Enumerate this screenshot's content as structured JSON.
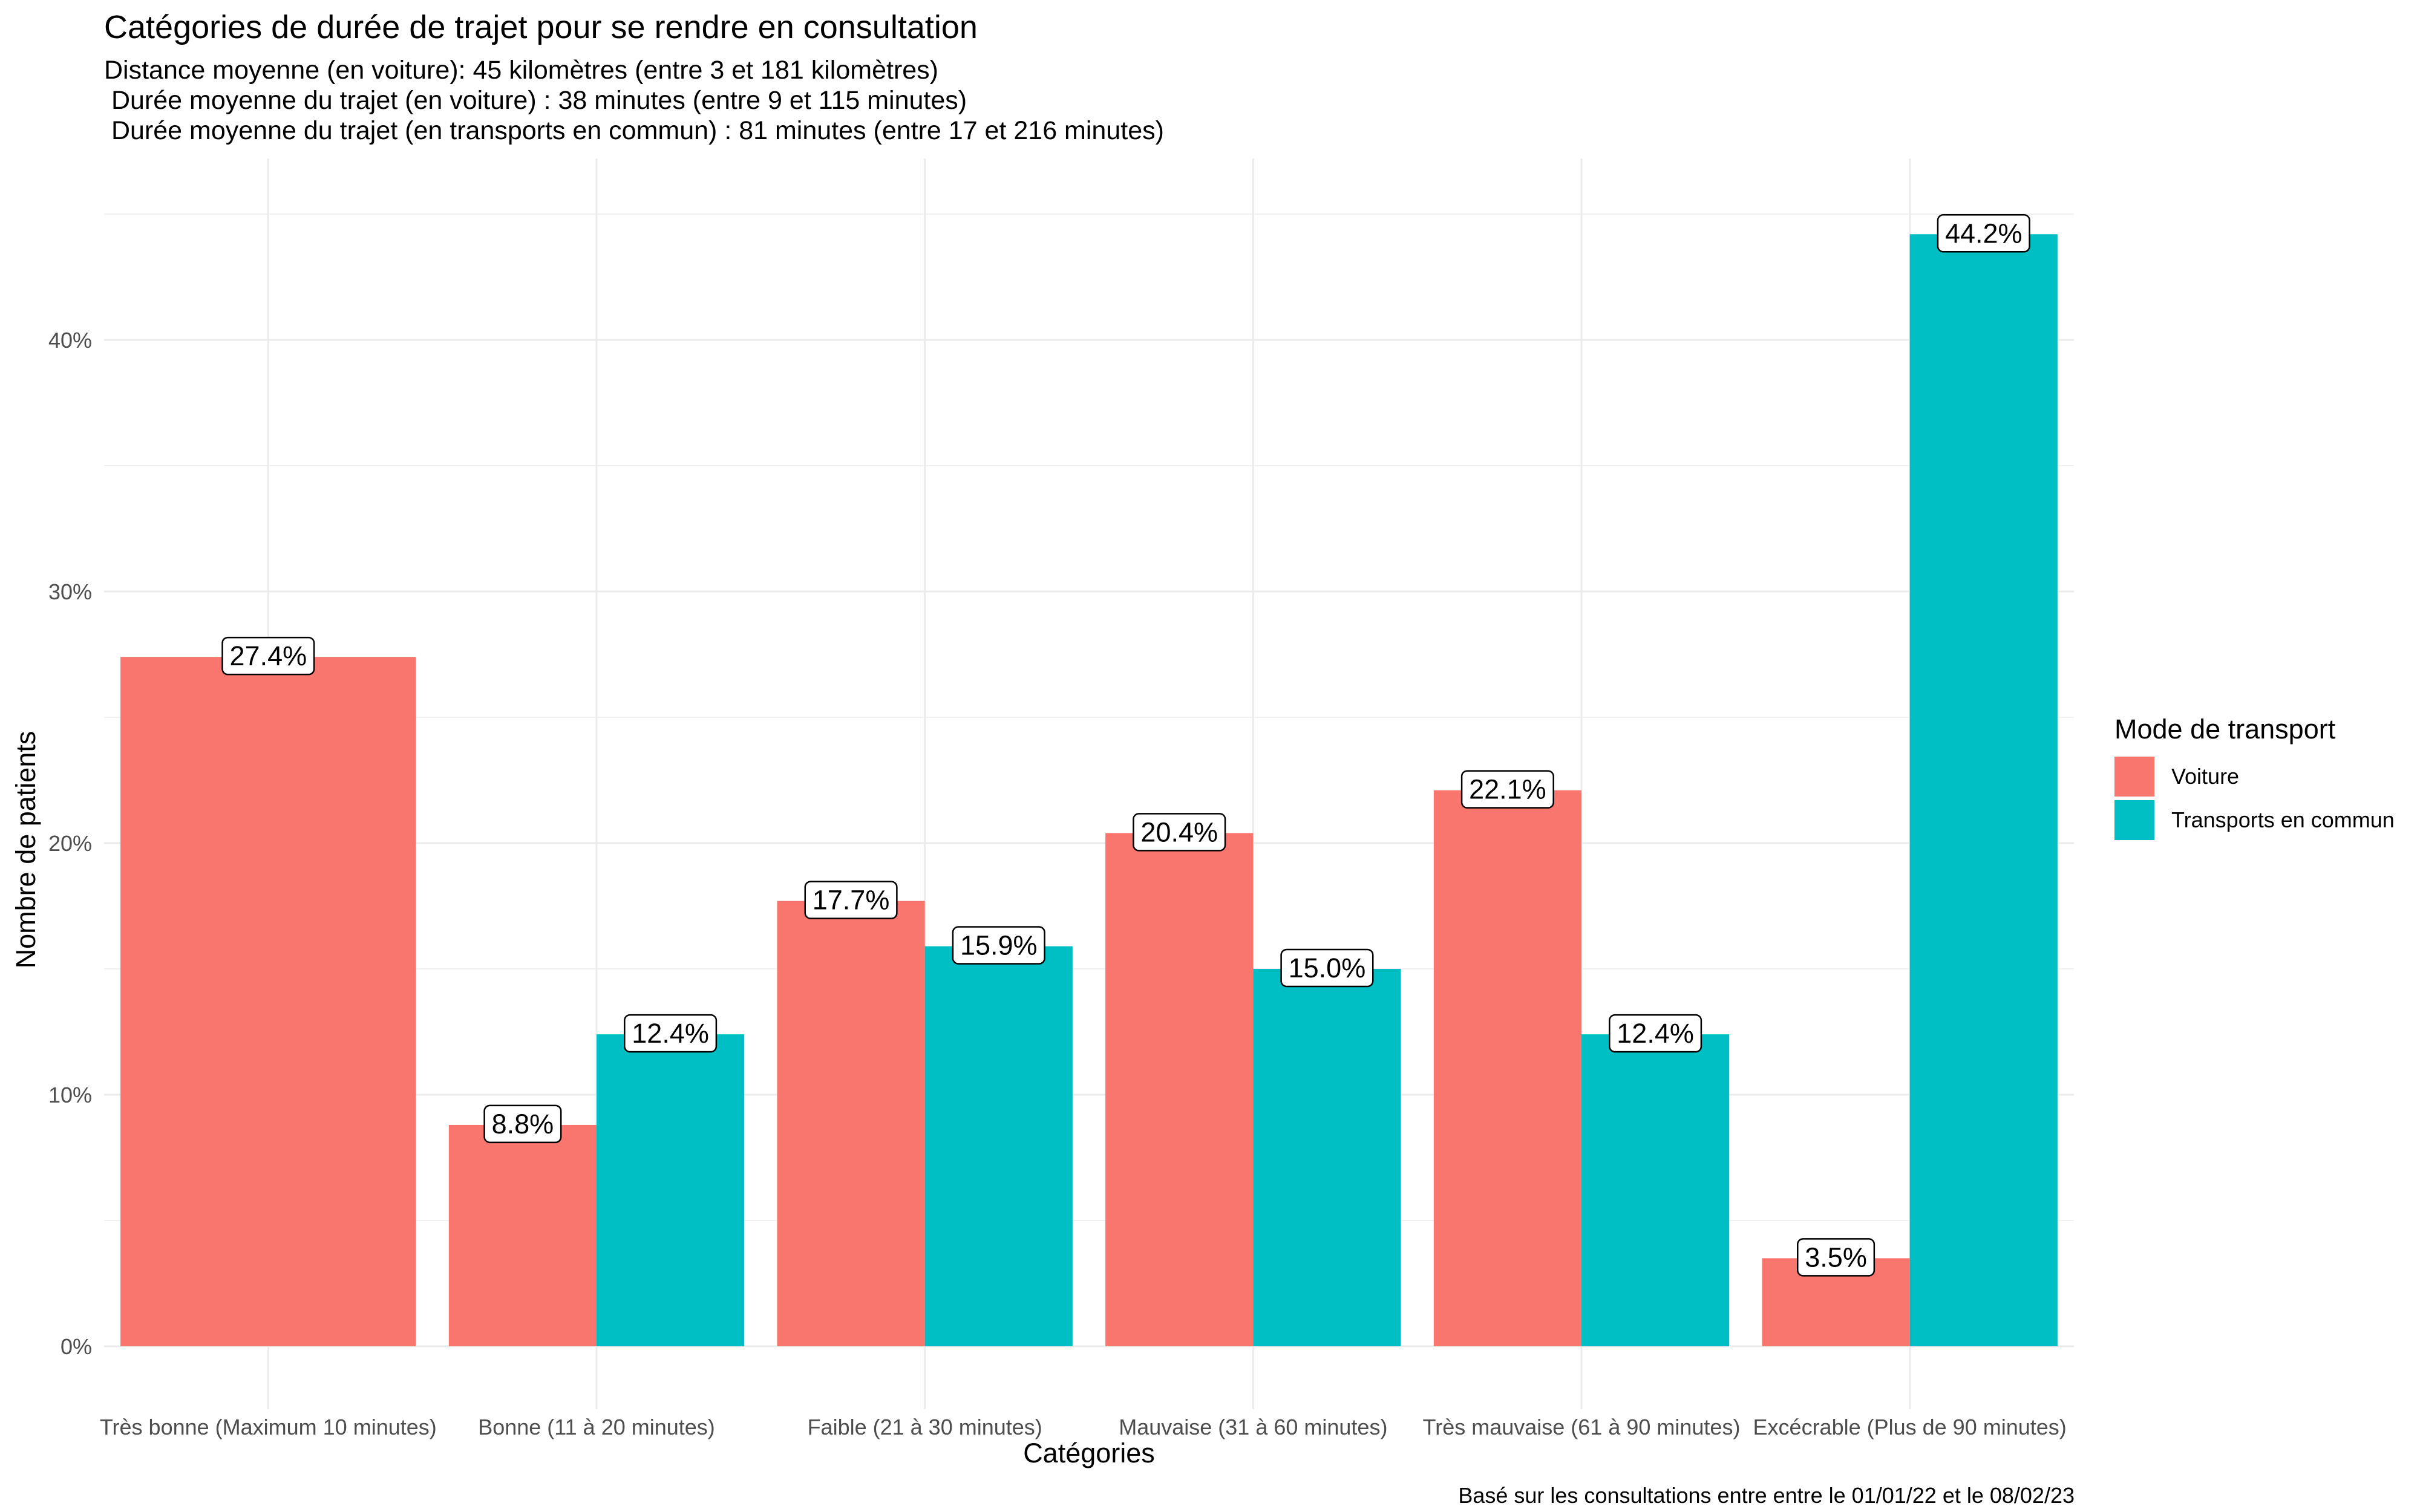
{
  "chart_data": {
    "type": "bar",
    "title": "Catégories de durée de trajet pour se rendre en consultation",
    "subtitle": [
      "Distance moyenne (en voiture): 45 kilomètres (entre 3 et 181 kilomètres)",
      " Durée moyenne du trajet (en voiture) : 38 minutes (entre 9 et 115 minutes)",
      " Durée moyenne du trajet (en transports en commun) : 81 minutes (entre 17 et 216 minutes)"
    ],
    "xlabel": "Catégories",
    "ylabel": "Nombre de patients",
    "caption": "Basé sur les consultations entre entre le 01/01/22 et le 08/02/23",
    "ylim": [
      0,
      46
    ],
    "yticks": [
      0,
      10,
      20,
      30,
      40
    ],
    "ytick_labels": [
      "0%",
      "10%",
      "20%",
      "30%",
      "40%"
    ],
    "grid": true,
    "legend": {
      "title": "Mode de transport",
      "position": "right"
    },
    "categories": [
      "Très bonne (Maximum 10 minutes)",
      "Bonne (11 à 20 minutes)",
      "Faible (21 à 30 minutes)",
      "Mauvaise (31 à 60 minutes)",
      "Très mauvaise (61 à 90 minutes)",
      "Excécrable (Plus de 90 minutes)"
    ],
    "series": [
      {
        "name": "Voiture",
        "color": "#F8766D",
        "values": [
          27.4,
          8.8,
          17.7,
          20.4,
          22.1,
          3.5
        ]
      },
      {
        "name": "Transports en commun",
        "color": "#00BFC4",
        "values": [
          null,
          12.4,
          15.9,
          15.0,
          12.4,
          44.2
        ]
      }
    ],
    "data_labels": [
      [
        "27.4%",
        "8.8%",
        "17.7%",
        "20.4%",
        "22.1%",
        "3.5%"
      ],
      [
        null,
        "12.4%",
        "15.9%",
        "15.0%",
        "12.4%",
        "44.2%"
      ]
    ]
  }
}
